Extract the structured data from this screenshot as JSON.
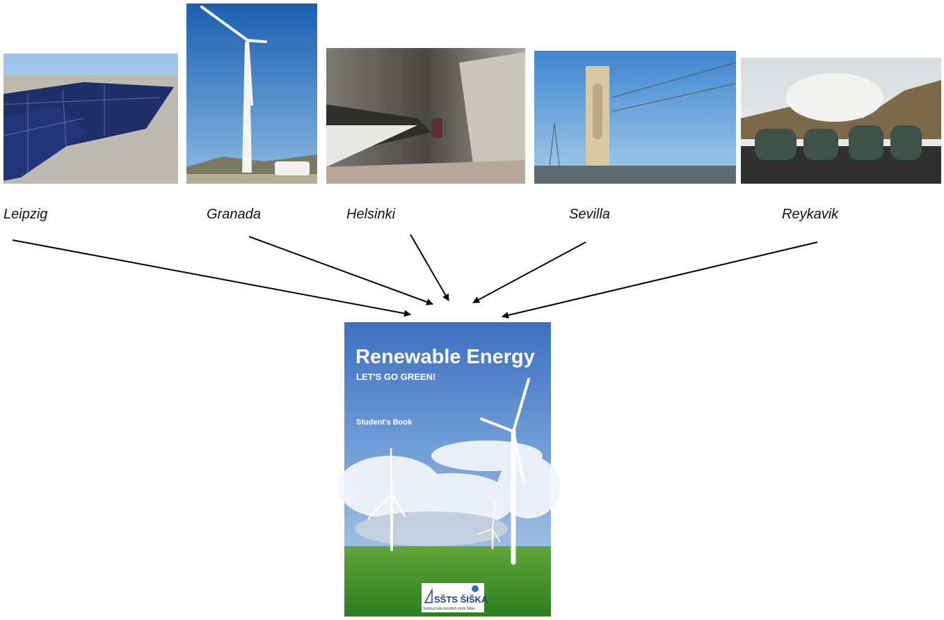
{
  "nodes": [
    {
      "label": "Leipzig"
    },
    {
      "label": "Granada"
    },
    {
      "label": "Helsinki"
    },
    {
      "label": "Sevilla"
    },
    {
      "label": "Reykavik"
    }
  ],
  "cover": {
    "title": "Renewable Energy",
    "subtitle": "LET'S GO GREEN!",
    "edition": "Student's Book",
    "logo": "SŠTS ŠIŠKA",
    "school": "Srednja šola tehniških strok Šiška"
  }
}
